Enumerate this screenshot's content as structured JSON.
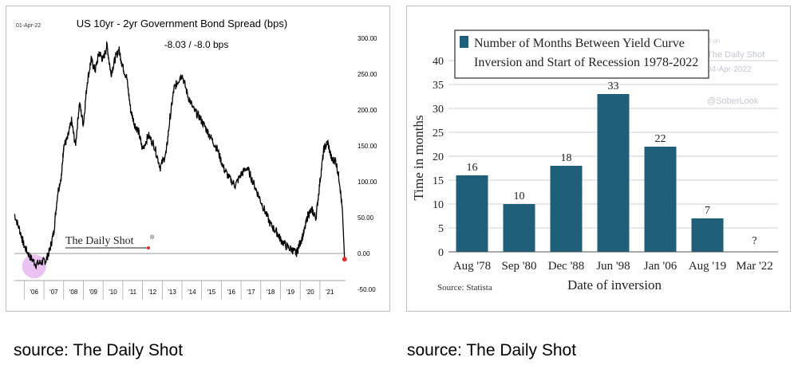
{
  "left_panel": {
    "date": "01-Apr-22",
    "spread_label": "-8.03  /  -8.0 bps",
    "brand": "The Daily Shot",
    "brand_mark": "®",
    "source": "source: The Daily Shot"
  },
  "right_panel": {
    "watermark_posted": "Posted on",
    "watermark_brand": "The Daily Shot",
    "watermark_date": "04-Apr-2022",
    "watermark_handle": "@SoberLook",
    "attribution": "Source: Statista",
    "source": "source: The Daily Shot",
    "colors": {
      "bar": "#1f5f7a"
    }
  },
  "chart_data": [
    {
      "type": "line",
      "title": "US 10yr - 2yr Government Bond Spread (bps)",
      "xlabel": "",
      "ylabel": "",
      "x_tick_labels": [
        "'06",
        "'07",
        "'08",
        "'09",
        "'10",
        "'11",
        "'12",
        "'13",
        "'14",
        "'15",
        "'16",
        "'17",
        "'18",
        "'19",
        "'20",
        "'21"
      ],
      "y_tick_labels": [
        "300.00",
        "250.00",
        "200.00",
        "150.00",
        "100.00",
        "50.00",
        "0.00",
        "-50.00"
      ],
      "y_ticks": [
        300,
        250,
        200,
        150,
        100,
        50,
        0,
        -50
      ],
      "ylim": [
        -50,
        300
      ],
      "xlim": [
        2005.5,
        2022.3
      ],
      "grid": false,
      "colors": {
        "line": "#000000",
        "zero_line": "#999999",
        "end_marker": "#e03030",
        "highlight": "#e7b8f0"
      },
      "series": [
        {
          "x": [
            2005.5,
            2005.8,
            2006.0,
            2006.3,
            2006.6,
            2006.9,
            2007.1,
            2007.3,
            2007.5,
            2007.7,
            2007.9,
            2008.0,
            2008.2,
            2008.4,
            2008.6,
            2008.8,
            2009.0,
            2009.2,
            2009.4,
            2009.6,
            2009.8,
            2010.0,
            2010.2,
            2010.4,
            2010.6,
            2010.8,
            2011.0,
            2011.2,
            2011.4,
            2011.6,
            2011.8,
            2012.0,
            2012.3,
            2012.6,
            2012.9,
            2013.2,
            2013.4,
            2013.6,
            2013.8,
            2014.0,
            2014.3,
            2014.6,
            2014.9,
            2015.2,
            2015.5,
            2015.8,
            2016.1,
            2016.4,
            2016.7,
            2017.0,
            2017.3,
            2017.6,
            2017.9,
            2018.2,
            2018.5,
            2018.8,
            2019.0,
            2019.3,
            2019.6,
            2019.8,
            2020.0,
            2020.2,
            2020.4,
            2020.6,
            2020.8,
            2021.0,
            2021.2,
            2021.4,
            2021.6,
            2021.8,
            2022.0,
            2022.15,
            2022.25
          ],
          "y": [
            55,
            30,
            10,
            -5,
            -15,
            -12,
            -10,
            5,
            30,
            85,
            110,
            150,
            160,
            185,
            150,
            210,
            180,
            240,
            270,
            255,
            280,
            270,
            290,
            250,
            270,
            285,
            260,
            245,
            200,
            180,
            170,
            145,
            165,
            150,
            120,
            140,
            190,
            230,
            240,
            250,
            220,
            200,
            190,
            175,
            160,
            145,
            120,
            105,
            95,
            110,
            120,
            100,
            80,
            60,
            40,
            30,
            20,
            10,
            5,
            0,
            15,
            30,
            55,
            60,
            50,
            100,
            145,
            155,
            130,
            130,
            100,
            55,
            -8
          ]
        }
      ],
      "annotations": [
        "-8.03  /  -8.0 bps"
      ]
    },
    {
      "type": "bar",
      "title": "Number of Months Between Yield Curve Inversion and Start of Recession 1978-2022",
      "xlabel": "Date of inversion",
      "ylabel": "Time in months",
      "categories": [
        "Aug '78",
        "Sep '80",
        "Dec '88",
        "Jun '98",
        "Jan '06",
        "Aug '19",
        "Mar '22"
      ],
      "values": [
        16,
        10,
        18,
        33,
        22,
        7,
        null
      ],
      "data_labels": [
        "16",
        "10",
        "18",
        "33",
        "22",
        "7",
        "?"
      ],
      "y_ticks": [
        0,
        5,
        10,
        15,
        20,
        25,
        30,
        35,
        40
      ],
      "y_tick_labels": [
        "0",
        "5",
        "10",
        "15",
        "20",
        "25",
        "30",
        "35",
        "40"
      ],
      "ylim": [
        0,
        40
      ],
      "grid": true,
      "legend_placement": "top"
    }
  ]
}
